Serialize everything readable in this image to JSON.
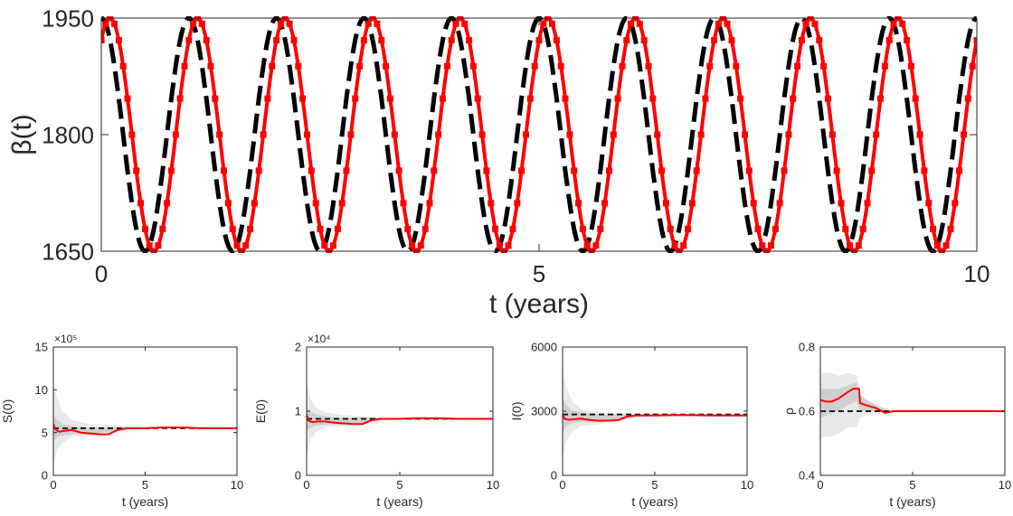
{
  "chart_data": [
    {
      "type": "line",
      "title": "",
      "xlabel": "t (years)",
      "ylabel": "β(t)",
      "xlim": [
        0,
        10
      ],
      "ylim": [
        1650,
        1950
      ],
      "xticks": [
        "0",
        "5",
        "10"
      ],
      "yticks": [
        "1650",
        "1800",
        "1950"
      ],
      "grid": false,
      "colors": {
        "true": "#000000",
        "estimate": "#ff0000"
      },
      "series": [
        {
          "style": "dashed-black",
          "formula": "1800 + 150*cos(2*pi*t)",
          "x_range": [
            0,
            10
          ],
          "peaks_x": [
            0,
            1,
            2,
            3,
            4,
            5,
            6,
            7,
            8,
            9,
            10
          ],
          "troughs_x": [
            0.5,
            1.5,
            2.5,
            3.5,
            4.5,
            5.5,
            6.5,
            7.5,
            8.5,
            9.5
          ],
          "max": 1950,
          "min": 1650
        },
        {
          "style": "solid-red-markers",
          "formula": "1800 + 150*cos(2*pi*(t-0.1))",
          "x_range": [
            0,
            10
          ],
          "max": 1950,
          "min": 1650
        }
      ]
    },
    {
      "type": "line",
      "xlabel": "t (years)",
      "ylabel": "S(0)",
      "multiplier": "×10⁵",
      "xlim": [
        0,
        10
      ],
      "ylim": [
        0,
        15
      ],
      "xticks": [
        "0",
        "5",
        "10"
      ],
      "yticks": [
        "0",
        "5",
        "10",
        "15"
      ],
      "series": [
        {
          "style": "dashed-black",
          "x": [
            0,
            10
          ],
          "y": [
            5.5,
            5.5
          ]
        },
        {
          "style": "solid-red",
          "x": [
            0,
            0.1,
            0.3,
            0.6,
            1,
            1.5,
            2,
            2.5,
            3,
            3.5,
            4,
            5,
            6,
            7,
            8,
            9,
            10
          ],
          "y": [
            6.0,
            5.4,
            5.1,
            5.2,
            5.3,
            5.0,
            4.9,
            4.8,
            4.8,
            5.3,
            5.5,
            5.5,
            5.6,
            5.6,
            5.5,
            5.5,
            5.5
          ]
        },
        {
          "style": "band-outer",
          "x": [
            0,
            0.2,
            0.5,
            1,
            2,
            3,
            4,
            5,
            6,
            10
          ],
          "lo": [
            1.5,
            3.0,
            3.8,
            4.5,
            4.7,
            5.0,
            5.3,
            5.4,
            5.5,
            5.5
          ],
          "hi": [
            10.5,
            9.0,
            7.5,
            6.5,
            6.0,
            5.9,
            5.7,
            5.6,
            5.6,
            5.6
          ]
        },
        {
          "style": "band-inner",
          "x": [
            0,
            0.2,
            0.5,
            1,
            2,
            3,
            4,
            5,
            10
          ],
          "lo": [
            4.0,
            4.5,
            4.7,
            4.8,
            4.8,
            5.1,
            5.4,
            5.5,
            5.5
          ],
          "hi": [
            7.0,
            6.5,
            6.0,
            5.8,
            5.5,
            5.6,
            5.6,
            5.6,
            5.6
          ]
        }
      ]
    },
    {
      "type": "line",
      "xlabel": "t (years)",
      "ylabel": "E(0)",
      "multiplier": "×10⁴",
      "xlim": [
        0,
        10
      ],
      "ylim": [
        0,
        2
      ],
      "xticks": [
        "0",
        "5",
        "10"
      ],
      "yticks": [
        "0",
        "1",
        "2"
      ],
      "series": [
        {
          "style": "dashed-black",
          "x": [
            0,
            10
          ],
          "y": [
            0.88,
            0.88
          ]
        },
        {
          "style": "solid-red",
          "x": [
            0,
            0.1,
            0.3,
            0.6,
            1,
            1.5,
            2,
            2.5,
            3,
            3.5,
            4,
            5,
            6,
            7,
            8,
            9,
            10
          ],
          "y": [
            0.95,
            0.85,
            0.83,
            0.84,
            0.84,
            0.82,
            0.81,
            0.8,
            0.8,
            0.86,
            0.88,
            0.88,
            0.89,
            0.89,
            0.88,
            0.88,
            0.88
          ]
        },
        {
          "style": "band-outer",
          "x": [
            0,
            0.2,
            0.5,
            1,
            2,
            3,
            4,
            5,
            10
          ],
          "lo": [
            0.3,
            0.55,
            0.68,
            0.75,
            0.76,
            0.8,
            0.86,
            0.87,
            0.87
          ],
          "hi": [
            1.45,
            1.2,
            1.05,
            0.98,
            0.94,
            0.92,
            0.9,
            0.9,
            0.9
          ]
        },
        {
          "style": "band-inner",
          "x": [
            0,
            0.2,
            0.5,
            1,
            2,
            3,
            4,
            10
          ],
          "lo": [
            0.7,
            0.74,
            0.77,
            0.79,
            0.79,
            0.82,
            0.87,
            0.87
          ],
          "hi": [
            1.05,
            1.0,
            0.95,
            0.92,
            0.89,
            0.9,
            0.89,
            0.89
          ]
        }
      ]
    },
    {
      "type": "line",
      "xlabel": "t (years)",
      "ylabel": "I(0)",
      "xlim": [
        0,
        10
      ],
      "ylim": [
        0,
        6000
      ],
      "xticks": [
        "0",
        "5",
        "10"
      ],
      "yticks": [
        "0",
        "3000",
        "6000"
      ],
      "series": [
        {
          "style": "dashed-black",
          "x": [
            0,
            10
          ],
          "y": [
            2850,
            2850
          ]
        },
        {
          "style": "solid-red",
          "x": [
            0,
            0.1,
            0.3,
            0.6,
            1,
            1.5,
            2,
            2.5,
            3,
            3.5,
            4,
            5,
            6,
            7,
            8,
            9,
            10
          ],
          "y": [
            2900,
            2650,
            2600,
            2620,
            2650,
            2580,
            2550,
            2560,
            2580,
            2750,
            2800,
            2800,
            2820,
            2820,
            2800,
            2800,
            2800
          ]
        },
        {
          "style": "band-outer",
          "x": [
            0,
            0.2,
            0.5,
            1,
            2,
            3,
            4,
            5,
            10
          ],
          "lo": [
            900,
            1600,
            2000,
            2300,
            2400,
            2500,
            2700,
            2750,
            2750
          ],
          "hi": [
            5000,
            4100,
            3500,
            3100,
            2950,
            2900,
            2880,
            2870,
            2870
          ]
        },
        {
          "style": "band-inner",
          "x": [
            0,
            0.2,
            0.5,
            1,
            2,
            3,
            4,
            10
          ],
          "lo": [
            2000,
            2300,
            2450,
            2500,
            2500,
            2550,
            2750,
            2750
          ],
          "hi": [
            3600,
            3300,
            3050,
            2950,
            2850,
            2850,
            2850,
            2850
          ]
        }
      ]
    },
    {
      "type": "line",
      "xlabel": "t (years)",
      "ylabel": "ρ",
      "xlim": [
        0,
        10
      ],
      "ylim": [
        0.4,
        0.8
      ],
      "xticks": [
        "0",
        "5",
        "10"
      ],
      "yticks": [
        "0.4",
        "0.6",
        "0.8"
      ],
      "series": [
        {
          "style": "dashed-black",
          "x": [
            0,
            10
          ],
          "y": [
            0.6,
            0.6
          ]
        },
        {
          "style": "solid-red",
          "x": [
            0,
            0.3,
            0.6,
            1,
            1.5,
            1.8,
            2.1,
            2.15,
            2.4,
            3.0,
            3.5,
            4.0,
            4.5,
            5,
            6,
            7,
            8,
            9,
            10
          ],
          "y": [
            0.635,
            0.63,
            0.63,
            0.64,
            0.66,
            0.67,
            0.67,
            0.625,
            0.62,
            0.61,
            0.595,
            0.6,
            0.6,
            0.6,
            0.6,
            0.6,
            0.6,
            0.6,
            0.6
          ]
        },
        {
          "style": "band-outer",
          "x": [
            0,
            0.5,
            1,
            1.5,
            2,
            2.15,
            2.5,
            3,
            3.5,
            4,
            5,
            10
          ],
          "lo": [
            0.52,
            0.52,
            0.53,
            0.55,
            0.55,
            0.58,
            0.59,
            0.59,
            0.59,
            0.598,
            0.6,
            0.6
          ],
          "hi": [
            0.72,
            0.72,
            0.71,
            0.72,
            0.71,
            0.64,
            0.63,
            0.62,
            0.61,
            0.603,
            0.602,
            0.602
          ]
        },
        {
          "style": "band-inner",
          "x": [
            0,
            0.5,
            1,
            1.5,
            2,
            2.15,
            2.5,
            3,
            3.5,
            4,
            10
          ],
          "lo": [
            0.58,
            0.59,
            0.6,
            0.62,
            0.63,
            0.6,
            0.6,
            0.6,
            0.595,
            0.6,
            0.6
          ],
          "hi": [
            0.67,
            0.67,
            0.67,
            0.68,
            0.69,
            0.65,
            0.635,
            0.62,
            0.605,
            0.602,
            0.602
          ]
        }
      ]
    }
  ]
}
